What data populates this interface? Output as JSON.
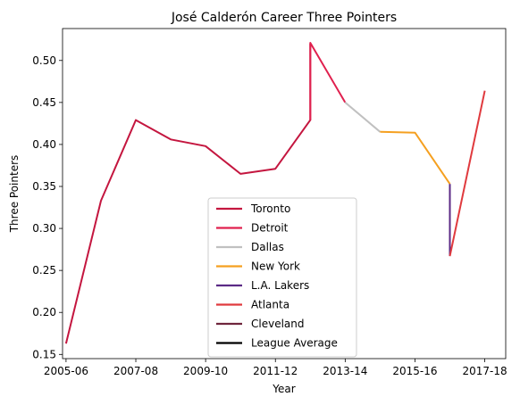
{
  "chart_data": {
    "type": "line",
    "title": "José Calderón  Career Three Pointers",
    "xlabel": "Year",
    "ylabel": "Three Pointers",
    "x_tick_labels": [
      "2005-06",
      "2007-08",
      "2009-10",
      "2011-12",
      "2013-14",
      "2015-16",
      "2017-18"
    ],
    "x_tick_positions": [
      2005,
      2007,
      2009,
      2011,
      2013,
      2015,
      2017
    ],
    "y_ticks": [
      0.15,
      0.2,
      0.25,
      0.3,
      0.35,
      0.4,
      0.45,
      0.5
    ],
    "y_tick_labels": [
      "0.15",
      "0.20",
      "0.25",
      "0.30",
      "0.35",
      "0.40",
      "0.45",
      "0.50"
    ],
    "xlim": [
      2004.9,
      2017.6
    ],
    "ylim": [
      0.145,
      0.538
    ],
    "grid": false,
    "legend_position": "lower-center",
    "series": [
      {
        "name": "Toronto",
        "color": "#c4163f",
        "x": [
          2005,
          2006,
          2007,
          2008,
          2009,
          2010,
          2011,
          2012,
          2012
        ],
        "y": [
          0.163,
          0.333,
          0.429,
          0.406,
          0.398,
          0.365,
          0.371,
          0.429,
          0.52
        ]
      },
      {
        "name": "Detroit",
        "color": "#e0204e",
        "x": [
          2012,
          2012,
          2013
        ],
        "y": [
          0.429,
          0.521,
          0.45
        ]
      },
      {
        "name": "Dallas",
        "color": "#c0c0c0",
        "x": [
          2013,
          2014
        ],
        "y": [
          0.45,
          0.415
        ]
      },
      {
        "name": "New York",
        "color": "#f5a020",
        "x": [
          2014,
          2015,
          2016
        ],
        "y": [
          0.415,
          0.414,
          0.353
        ]
      },
      {
        "name": "L.A. Lakers",
        "color": "#5b2a86",
        "x": [
          2016,
          2016
        ],
        "y": [
          0.353,
          0.267
        ]
      },
      {
        "name": "Atlanta",
        "color": "#e03a3e",
        "x": [
          2016,
          2017
        ],
        "y": [
          0.267,
          0.464
        ]
      },
      {
        "name": "Cleveland",
        "color": "#6f263d",
        "x": [],
        "y": []
      },
      {
        "name": "League Average",
        "color": "#000000",
        "x": [],
        "y": []
      }
    ]
  }
}
